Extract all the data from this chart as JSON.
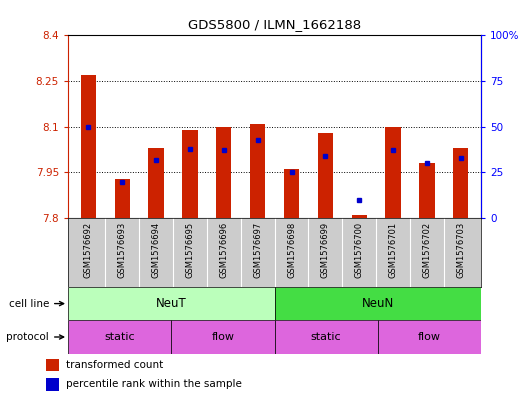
{
  "title": "GDS5800 / ILMN_1662188",
  "samples": [
    "GSM1576692",
    "GSM1576693",
    "GSM1576694",
    "GSM1576695",
    "GSM1576696",
    "GSM1576697",
    "GSM1576698",
    "GSM1576699",
    "GSM1576700",
    "GSM1576701",
    "GSM1576702",
    "GSM1576703"
  ],
  "transformed_count": [
    8.27,
    7.93,
    8.03,
    8.09,
    8.1,
    8.11,
    7.96,
    8.08,
    7.81,
    8.1,
    7.98,
    8.03
  ],
  "percentile_rank": [
    50,
    20,
    32,
    38,
    37,
    43,
    25,
    34,
    10,
    37,
    30,
    33
  ],
  "ymin": 7.8,
  "ymax": 8.4,
  "yticks_left": [
    7.8,
    7.95,
    8.1,
    8.25,
    8.4
  ],
  "yticks_right": [
    0,
    25,
    50,
    75,
    100
  ],
  "bar_color": "#cc2200",
  "dot_color": "#0000cc",
  "cell_line_labels": [
    "NeuT",
    "NeuN"
  ],
  "cell_line_colors": [
    "#bbffbb",
    "#44dd44"
  ],
  "protocol_labels": [
    "static",
    "flow",
    "static",
    "flow"
  ],
  "protocol_color": "#dd66dd",
  "legend_red": "transformed count",
  "legend_blue": "percentile rank within the sample"
}
